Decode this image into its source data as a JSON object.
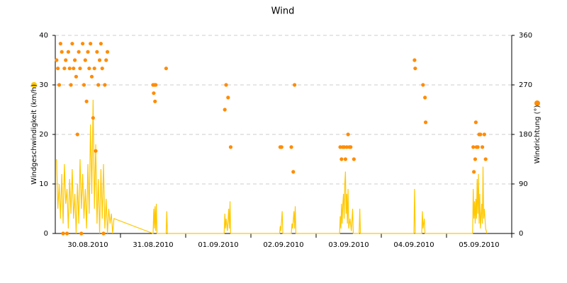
{
  "chart_data": {
    "type": "line+scatter",
    "title": "Wind",
    "ylabel": "Windgeschwindigkeit (km/h)",
    "y2label": "Windrichtung (°)",
    "xlim": [
      0,
      7
    ],
    "xticks": [
      {
        "value": 0.5,
        "label": "30.08.2010"
      },
      {
        "value": 1.5,
        "label": "31.08.2010"
      },
      {
        "value": 2.5,
        "label": "01.09.2010"
      },
      {
        "value": 3.5,
        "label": "02.09.2010"
      },
      {
        "value": 4.5,
        "label": "03.09.2010"
      },
      {
        "value": 5.5,
        "label": "04.09.2010"
      },
      {
        "value": 6.5,
        "label": "05.09.2010"
      }
    ],
    "ylim": [
      0,
      40
    ],
    "yticks": [
      0,
      10,
      20,
      30,
      40
    ],
    "y2lim": [
      0,
      360
    ],
    "y2ticks": [
      0,
      90,
      180,
      270,
      360
    ],
    "grid": true,
    "series": [
      {
        "type": "line",
        "color": "#ffc800",
        "x": [
          0.02,
          0.04,
          0.06,
          0.08,
          0.1,
          0.12,
          0.14,
          0.16,
          0.18,
          0.2,
          0.22,
          0.24,
          0.26,
          0.28,
          0.3,
          0.32,
          0.34,
          0.36,
          0.38,
          0.4,
          0.42,
          0.44,
          0.46,
          0.48,
          0.5,
          0.52,
          0.54,
          0.56,
          0.58,
          0.6,
          0.62,
          0.64,
          0.66,
          0.68,
          0.7,
          0.72,
          0.74,
          0.76,
          0.78,
          0.8,
          0.82,
          0.84,
          0.86,
          0.88,
          0.9,
          1.5,
          1.51,
          1.52,
          1.53,
          1.54,
          1.55,
          1.56,
          1.7,
          1.71,
          1.72,
          2.59,
          2.6,
          2.61,
          2.62,
          2.64,
          2.66,
          2.67,
          2.68,
          2.69,
          3.44,
          3.45,
          3.46,
          3.48,
          3.49,
          3.62,
          3.63,
          3.64,
          3.66,
          3.67,
          3.68,
          3.69,
          4.36,
          4.37,
          4.38,
          4.39,
          4.4,
          4.41,
          4.42,
          4.43,
          4.44,
          4.45,
          4.46,
          4.47,
          4.48,
          4.49,
          4.5,
          4.52,
          4.54,
          4.56,
          4.57,
          4.66,
          4.67,
          4.68,
          5.5,
          5.51,
          5.52,
          5.62,
          5.63,
          5.64,
          5.66,
          5.67,
          6.4,
          6.41,
          6.42,
          6.43,
          6.44,
          6.45,
          6.46,
          6.47,
          6.48,
          6.49,
          6.5,
          6.51,
          6.52,
          6.54,
          6.55,
          6.56,
          6.57,
          6.58,
          6.6,
          6.62
        ],
        "values": [
          15,
          5,
          10,
          3,
          12,
          2,
          14,
          6,
          9,
          1,
          11,
          4,
          13,
          3,
          8,
          0,
          10,
          2,
          15,
          5,
          12,
          3,
          9,
          1,
          14,
          4,
          22,
          8,
          27,
          5,
          18,
          2,
          11,
          0,
          13,
          3,
          14,
          1,
          7,
          0,
          5,
          2,
          4,
          0,
          3,
          0,
          5,
          1,
          5.5,
          0.5,
          6,
          0,
          0,
          4.5,
          0,
          0,
          4,
          1,
          3,
          0.5,
          5,
          1,
          6.5,
          0,
          0,
          1.5,
          0.5,
          4.5,
          0,
          0,
          2,
          1,
          4.5,
          1,
          5.5,
          0,
          0,
          3.5,
          1,
          6,
          2,
          6,
          8,
          3,
          10,
          12.5,
          4,
          8,
          2,
          9,
          1,
          3,
          0.5,
          5,
          0,
          0,
          5,
          0,
          0,
          9,
          0,
          0,
          4.5,
          1,
          3,
          0,
          0,
          9,
          3,
          6.5,
          2,
          7,
          3,
          11,
          4,
          12,
          2,
          8,
          1,
          6,
          2,
          13.5,
          3,
          5,
          1,
          0
        ]
      },
      {
        "type": "scatter",
        "color": "#ff8c00",
        "axis": "y2",
        "x": [
          0.02,
          0.04,
          0.06,
          0.08,
          0.1,
          0.12,
          0.14,
          0.16,
          0.18,
          0.2,
          0.22,
          0.24,
          0.26,
          0.28,
          0.3,
          0.32,
          0.34,
          0.36,
          0.38,
          0.4,
          0.42,
          0.44,
          0.46,
          0.48,
          0.5,
          0.52,
          0.54,
          0.56,
          0.58,
          0.6,
          0.62,
          0.64,
          0.66,
          0.68,
          0.7,
          0.72,
          0.74,
          0.76,
          0.78,
          0.8,
          1.5,
          1.51,
          1.52,
          1.53,
          1.54,
          1.7,
          2.6,
          2.62,
          2.65,
          2.69,
          3.45,
          3.47,
          3.62,
          3.65,
          3.67,
          4.37,
          4.39,
          4.41,
          4.43,
          4.45,
          4.47,
          4.49,
          4.51,
          4.53,
          4.58,
          5.51,
          5.52,
          5.64,
          5.67,
          5.68,
          6.41,
          6.42,
          6.44,
          6.45,
          6.46,
          6.48,
          6.5,
          6.52,
          6.55,
          6.58,
          6.6
        ],
        "values": [
          315,
          300,
          270,
          345,
          330,
          0,
          300,
          315,
          0,
          330,
          300,
          270,
          345,
          300,
          315,
          285,
          180,
          330,
          300,
          0,
          345,
          270,
          315,
          240,
          330,
          300,
          345,
          285,
          210,
          300,
          150,
          330,
          270,
          315,
          345,
          300,
          0,
          270,
          315,
          330,
          270,
          255,
          270,
          240,
          270,
          300,
          225,
          270,
          247,
          157,
          157,
          157,
          157,
          112,
          270,
          157,
          135,
          157,
          157,
          135,
          157,
          180,
          157,
          157,
          135,
          315,
          300,
          270,
          247,
          202,
          157,
          112,
          135,
          202,
          157,
          157,
          180,
          180,
          157,
          180,
          135
        ]
      }
    ]
  }
}
